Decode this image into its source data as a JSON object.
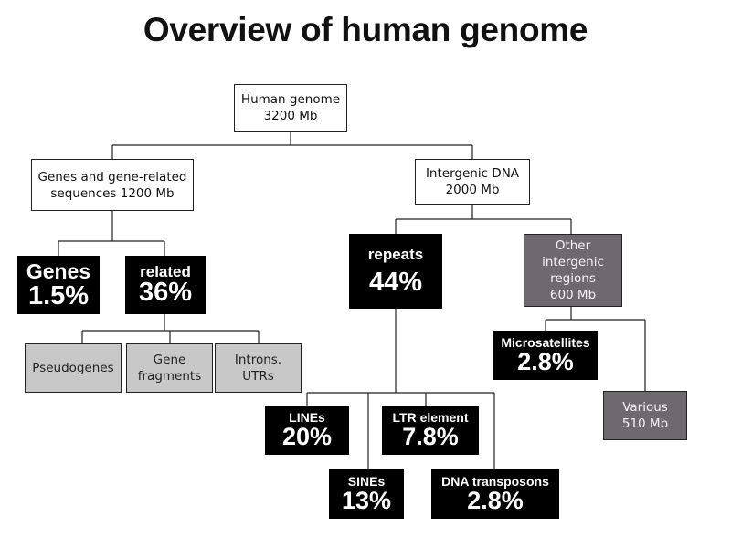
{
  "title": "Overview of human genome",
  "nodes": {
    "root": {
      "line1": "Human genome",
      "line2": "3200 Mb"
    },
    "genes_related": {
      "line1": "Genes and gene-related",
      "line2": "sequences 1200 Mb"
    },
    "intergenic": {
      "line1": "Intergenic DNA",
      "line2": "2000 Mb"
    },
    "genes": {
      "label": "Genes",
      "percent": "1.5%"
    },
    "related": {
      "label": "related",
      "percent": "36%"
    },
    "repeats": {
      "label": "repeats",
      "percent": "44%"
    },
    "other_intergenic": {
      "line1": "Other",
      "line2": "intergenic",
      "line3": "regions",
      "line4": "600 Mb"
    },
    "pseudogenes": {
      "line1": "Pseudogenes"
    },
    "gene_fragments": {
      "line1": "Gene",
      "line2": "fragments"
    },
    "introns_utrs": {
      "line1": "Introns.",
      "line2": "UTRs"
    },
    "microsatellites": {
      "label": "Microsatellites",
      "percent": "2.8%"
    },
    "various": {
      "line1": "Various",
      "line2": "510 Mb"
    },
    "lines": {
      "label": "LINEs",
      "percent": "20%"
    },
    "ltr": {
      "label": "LTR element",
      "percent": "7.8%"
    },
    "sines": {
      "label": "SINEs",
      "percent": "13%"
    },
    "dna_transposons": {
      "label": "DNA transposons",
      "percent": "2.8%"
    }
  },
  "colors": {
    "black_box": "#000000",
    "grey_box": "#c8c8c8",
    "dark_box": "#6f6870",
    "line": "#222222"
  }
}
